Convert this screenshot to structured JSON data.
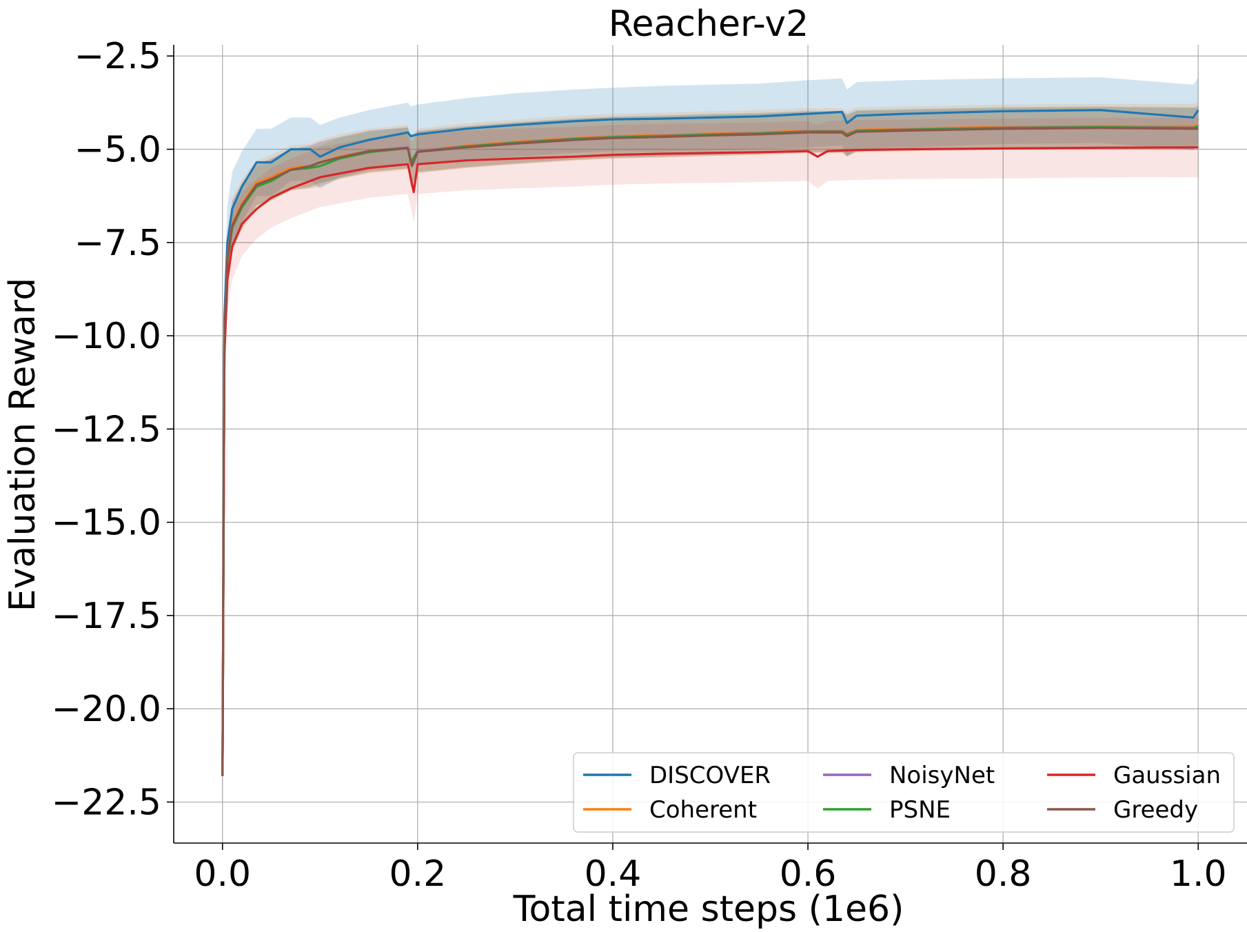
{
  "chart_data": {
    "type": "line",
    "title": "Reacher-v2",
    "xlabel": "Total time steps (1e6)",
    "ylabel": "Evaluation Reward",
    "xlim": [
      -0.05,
      1.05
    ],
    "ylim": [
      -23.6,
      -2.2
    ],
    "x_ticks": [
      0.0,
      0.2,
      0.4,
      0.6,
      0.8,
      1.0
    ],
    "x_tick_labels": [
      "0.0",
      "0.2",
      "0.4",
      "0.6",
      "0.8",
      "1.0"
    ],
    "y_ticks": [
      -2.5,
      -5.0,
      -7.5,
      -10.0,
      -12.5,
      -15.0,
      -17.5,
      -20.0,
      -22.5
    ],
    "y_tick_labels": [
      "−2.5",
      "−5.0",
      "−7.5",
      "−10.0",
      "−12.5",
      "−15.0",
      "−17.5",
      "−20.0",
      "−22.5"
    ],
    "grid": true,
    "legend_position": "lower-right",
    "legend_columns": 3,
    "series": [
      {
        "name": "DISCOVER",
        "color": "#1f77b4",
        "band_alpha": 0.2,
        "x": [
          0,
          0.002,
          0.005,
          0.01,
          0.02,
          0.035,
          0.05,
          0.07,
          0.09,
          0.1,
          0.12,
          0.15,
          0.19,
          0.193,
          0.2,
          0.25,
          0.3,
          0.36,
          0.4,
          0.45,
          0.5,
          0.55,
          0.6,
          0.635,
          0.64,
          0.65,
          0.7,
          0.8,
          0.9,
          0.995,
          1.0
        ],
        "y": [
          -21.8,
          -9.5,
          -7.5,
          -6.6,
          -6.0,
          -5.35,
          -5.35,
          -5.0,
          -5.0,
          -5.2,
          -4.95,
          -4.75,
          -4.55,
          -4.65,
          -4.6,
          -4.45,
          -4.35,
          -4.25,
          -4.2,
          -4.18,
          -4.15,
          -4.12,
          -4.05,
          -4.0,
          -4.3,
          -4.1,
          -4.05,
          -3.98,
          -3.95,
          -4.15,
          -3.95
        ],
        "band": [
          0.9,
          1.0,
          1.0,
          1.0,
          0.95,
          0.9,
          0.9,
          0.85,
          0.85,
          0.85,
          0.8,
          0.8,
          0.8,
          0.8,
          0.8,
          0.82,
          0.85,
          0.85,
          0.85,
          0.88,
          0.88,
          0.88,
          0.9,
          0.9,
          0.9,
          0.9,
          0.9,
          0.88,
          0.88,
          0.88,
          0.88
        ]
      },
      {
        "name": "Coherent",
        "color": "#ff7f0e",
        "band_alpha": 0.15,
        "x": [
          0,
          0.002,
          0.005,
          0.01,
          0.02,
          0.035,
          0.05,
          0.07,
          0.09,
          0.1,
          0.12,
          0.15,
          0.19,
          0.193,
          0.2,
          0.25,
          0.3,
          0.36,
          0.4,
          0.45,
          0.5,
          0.55,
          0.6,
          0.635,
          0.64,
          0.65,
          0.7,
          0.8,
          0.9,
          0.995,
          1.0
        ],
        "y": [
          -21.8,
          -10.0,
          -7.9,
          -7.0,
          -6.45,
          -5.9,
          -5.75,
          -5.5,
          -5.45,
          -5.35,
          -5.2,
          -5.05,
          -4.95,
          -5.35,
          -5.05,
          -4.9,
          -4.8,
          -4.7,
          -4.65,
          -4.62,
          -4.58,
          -4.55,
          -4.5,
          -4.5,
          -4.58,
          -4.48,
          -4.45,
          -4.4,
          -4.38,
          -4.38,
          -4.35
        ],
        "band": [
          0.7,
          0.7,
          0.7,
          0.7,
          0.65,
          0.6,
          0.6,
          0.6,
          0.6,
          0.6,
          0.6,
          0.6,
          0.6,
          0.7,
          0.6,
          0.6,
          0.6,
          0.6,
          0.6,
          0.6,
          0.6,
          0.6,
          0.6,
          0.6,
          0.6,
          0.6,
          0.6,
          0.6,
          0.6,
          0.6,
          0.6
        ]
      },
      {
        "name": "NoisyNet",
        "color": "#9467bd",
        "band_alpha": 0.15,
        "x": [
          0,
          0.002,
          0.005,
          0.01,
          0.02,
          0.035,
          0.05,
          0.07,
          0.09,
          0.1,
          0.12,
          0.15,
          0.19,
          0.193,
          0.2,
          0.25,
          0.3,
          0.36,
          0.4,
          0.45,
          0.5,
          0.55,
          0.6,
          0.635,
          0.64,
          0.65,
          0.7,
          0.8,
          0.9,
          0.995,
          1.0
        ],
        "y": [
          -21.8,
          -10.0,
          -7.95,
          -7.05,
          -6.5,
          -5.95,
          -5.8,
          -5.55,
          -5.45,
          -5.35,
          -5.22,
          -5.05,
          -4.95,
          -5.35,
          -5.05,
          -4.92,
          -4.82,
          -4.72,
          -4.67,
          -4.64,
          -4.6,
          -4.57,
          -4.52,
          -4.52,
          -4.6,
          -4.5,
          -4.47,
          -4.42,
          -4.4,
          -4.42,
          -4.38
        ],
        "band": [
          0.65,
          0.65,
          0.65,
          0.65,
          0.6,
          0.55,
          0.55,
          0.55,
          0.55,
          0.55,
          0.55,
          0.55,
          0.55,
          0.65,
          0.55,
          0.55,
          0.55,
          0.55,
          0.55,
          0.55,
          0.55,
          0.55,
          0.55,
          0.55,
          0.55,
          0.55,
          0.55,
          0.55,
          0.55,
          0.55,
          0.55
        ]
      },
      {
        "name": "PSNE",
        "color": "#2ca02c",
        "band_alpha": 0.15,
        "x": [
          0,
          0.002,
          0.005,
          0.01,
          0.02,
          0.035,
          0.05,
          0.07,
          0.09,
          0.1,
          0.12,
          0.15,
          0.19,
          0.193,
          0.2,
          0.25,
          0.3,
          0.36,
          0.4,
          0.45,
          0.5,
          0.55,
          0.6,
          0.635,
          0.64,
          0.65,
          0.7,
          0.8,
          0.9,
          0.995,
          1.0
        ],
        "y": [
          -21.8,
          -10.1,
          -8.0,
          -7.1,
          -6.55,
          -6.0,
          -5.85,
          -5.55,
          -5.5,
          -5.45,
          -5.25,
          -5.08,
          -4.97,
          -5.35,
          -5.07,
          -4.93,
          -4.83,
          -4.73,
          -4.68,
          -4.65,
          -4.61,
          -4.58,
          -4.53,
          -4.53,
          -4.62,
          -4.51,
          -4.48,
          -4.43,
          -4.41,
          -4.43,
          -4.4
        ],
        "band": [
          0.65,
          0.65,
          0.65,
          0.65,
          0.6,
          0.55,
          0.55,
          0.55,
          0.55,
          0.55,
          0.55,
          0.55,
          0.55,
          0.65,
          0.55,
          0.55,
          0.55,
          0.55,
          0.55,
          0.55,
          0.55,
          0.55,
          0.55,
          0.55,
          0.55,
          0.55,
          0.55,
          0.55,
          0.55,
          0.55,
          0.55
        ]
      },
      {
        "name": "Gaussian",
        "color": "#d62728",
        "band_alpha": 0.12,
        "x": [
          0,
          0.002,
          0.005,
          0.01,
          0.02,
          0.035,
          0.05,
          0.07,
          0.09,
          0.1,
          0.12,
          0.15,
          0.19,
          0.196,
          0.2,
          0.25,
          0.3,
          0.36,
          0.4,
          0.45,
          0.5,
          0.55,
          0.6,
          0.61,
          0.62,
          0.65,
          0.7,
          0.8,
          0.9,
          0.995,
          1.0
        ],
        "y": [
          -21.8,
          -10.5,
          -8.5,
          -7.6,
          -7.0,
          -6.6,
          -6.3,
          -6.05,
          -5.85,
          -5.75,
          -5.65,
          -5.5,
          -5.4,
          -6.15,
          -5.4,
          -5.3,
          -5.25,
          -5.2,
          -5.15,
          -5.12,
          -5.1,
          -5.08,
          -5.05,
          -5.2,
          -5.05,
          -5.02,
          -5.0,
          -4.98,
          -4.96,
          -4.95,
          -4.95
        ],
        "band": [
          0.9,
          0.9,
          0.9,
          0.9,
          0.85,
          0.8,
          0.8,
          0.8,
          0.8,
          0.8,
          0.8,
          0.8,
          0.8,
          0.8,
          0.8,
          0.8,
          0.8,
          0.8,
          0.8,
          0.8,
          0.8,
          0.8,
          0.8,
          0.85,
          0.8,
          0.8,
          0.8,
          0.8,
          0.8,
          0.8,
          0.8
        ]
      },
      {
        "name": "Greedy",
        "color": "#8c564b",
        "band_alpha": 0.15,
        "x": [
          0,
          0.002,
          0.005,
          0.01,
          0.02,
          0.035,
          0.05,
          0.07,
          0.09,
          0.1,
          0.12,
          0.15,
          0.19,
          0.194,
          0.2,
          0.25,
          0.3,
          0.36,
          0.4,
          0.45,
          0.5,
          0.55,
          0.6,
          0.635,
          0.64,
          0.65,
          0.7,
          0.8,
          0.9,
          0.995,
          1.0
        ],
        "y": [
          -21.8,
          -10.0,
          -7.95,
          -7.05,
          -6.5,
          -5.95,
          -5.8,
          -5.55,
          -5.45,
          -5.35,
          -5.22,
          -5.05,
          -4.97,
          -5.45,
          -5.07,
          -4.95,
          -4.85,
          -4.75,
          -4.7,
          -4.67,
          -4.63,
          -4.6,
          -4.55,
          -4.55,
          -4.65,
          -4.53,
          -4.5,
          -4.45,
          -4.43,
          -4.45,
          -4.45
        ],
        "band": [
          0.65,
          0.65,
          0.65,
          0.65,
          0.6,
          0.55,
          0.55,
          0.55,
          0.55,
          0.55,
          0.55,
          0.55,
          0.55,
          0.65,
          0.55,
          0.55,
          0.55,
          0.55,
          0.55,
          0.55,
          0.55,
          0.55,
          0.55,
          0.55,
          0.55,
          0.55,
          0.55,
          0.55,
          0.55,
          0.55,
          0.55
        ]
      }
    ]
  }
}
